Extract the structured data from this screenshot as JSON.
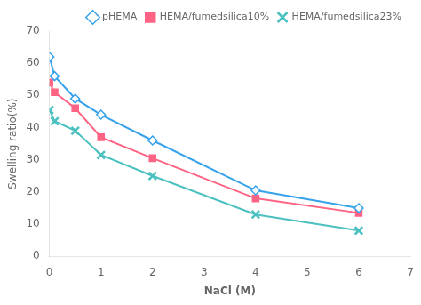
{
  "chart_data": {
    "type": "line",
    "x": [
      0,
      0.1,
      0.5,
      1,
      2,
      4,
      6
    ],
    "series": [
      {
        "name": "pHEMA",
        "values": [
          62,
          56,
          49,
          44,
          36,
          20.5,
          15
        ],
        "marker": "diamond"
      },
      {
        "name": "HEMA/fumedsilica10%",
        "values": [
          54,
          51,
          46,
          37,
          30.5,
          18,
          13.5
        ],
        "marker": "square"
      },
      {
        "name": "HEMA/fumedsilica23%",
        "values": [
          45.5,
          42,
          39,
          31.5,
          25,
          13,
          8
        ],
        "marker": "x"
      }
    ],
    "xlabel": "NaCl (M)",
    "ylabel": "Swelling ratio(%)",
    "xlim": [
      0,
      7
    ],
    "ylim": [
      0,
      70
    ],
    "xticks": [
      0,
      1,
      2,
      3,
      4,
      5,
      6,
      7
    ],
    "yticks": [
      0,
      10,
      20,
      30,
      40,
      50,
      60,
      70
    ],
    "grid": false,
    "legend": "upper right"
  }
}
